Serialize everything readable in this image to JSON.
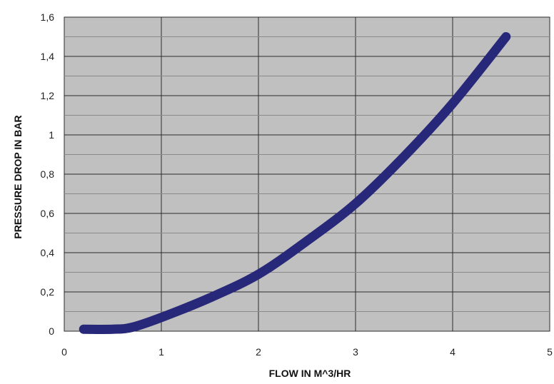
{
  "chart_data": {
    "type": "line",
    "title": "",
    "xlabel": "FLOW IN M^3/HR",
    "ylabel": "PRESSURE DROP IN BAR",
    "xlim": [
      0,
      5
    ],
    "ylim": [
      0,
      1.6
    ],
    "x_ticks": [
      "0",
      "1",
      "2",
      "3",
      "4",
      "5"
    ],
    "y_ticks": [
      "0",
      "0,2",
      "0,4",
      "0,6",
      "0,8",
      "1",
      "1,2",
      "1,4",
      "1,6"
    ],
    "grid": true,
    "legend": "none",
    "series": [
      {
        "x": [
          0.2,
          0.5,
          0.7,
          1.0,
          1.5,
          2.0,
          2.5,
          3.0,
          3.5,
          4.0,
          4.55
        ],
        "y": [
          0.01,
          0.01,
          0.02,
          0.07,
          0.17,
          0.29,
          0.46,
          0.65,
          0.89,
          1.16,
          1.5
        ]
      }
    ],
    "colors": {
      "plot_background": "#c0c0c0",
      "grid": "#2b2b2b",
      "line": "#28287a"
    }
  }
}
